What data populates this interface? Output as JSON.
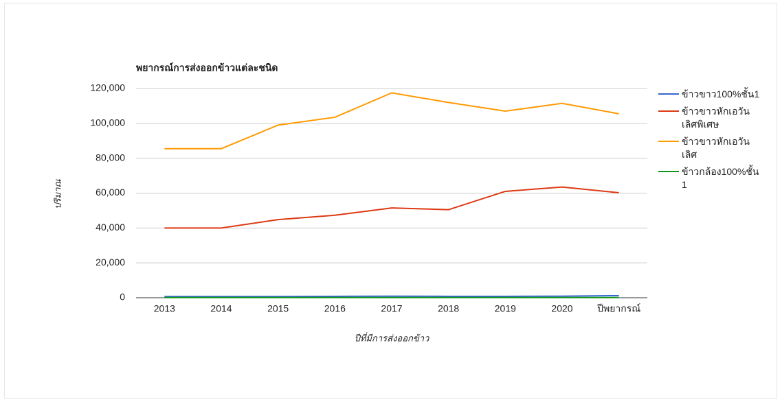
{
  "chart_data": {
    "type": "line",
    "title": "พยากรณ์การส่งออกข้าวแต่ละชนิด",
    "x_label": "ปีที่มีการส่งออกข้าว",
    "y_label": "ปริมาณ",
    "categories": [
      "2013",
      "2014",
      "2015",
      "2016",
      "2017",
      "2018",
      "2019",
      "2020",
      "ปีพยากรณ์"
    ],
    "series": [
      {
        "name": "ข้าวขาว100%ชั้น1",
        "color": "#3366cc",
        "values": [
          700,
          700,
          700,
          800,
          900,
          800,
          800,
          900,
          1200
        ]
      },
      {
        "name": "ข้าวขาวหักเอวันเลิศพิเศษ",
        "color": "#dc3912",
        "values": [
          40000,
          40000,
          44800,
          47300,
          51500,
          50500,
          61000,
          63500,
          60200
        ]
      },
      {
        "name": "ข้าวขาวหักเอวันเลิศ",
        "color": "#ff9900",
        "values": [
          85500,
          85500,
          99000,
          103500,
          117500,
          112000,
          107000,
          111500,
          105500
        ]
      },
      {
        "name": "ข้าวกล้อง100%ชั้น 1",
        "color": "#109618",
        "values": [
          100,
          100,
          100,
          100,
          100,
          100,
          100,
          100,
          100
        ]
      }
    ],
    "ylim": [
      0,
      120000
    ],
    "yticks": [
      0,
      {
        "value": 20000,
        "label": "20,000"
      },
      {
        "value": 40000,
        "label": "40,000"
      },
      {
        "value": 60000,
        "label": "60,000"
      },
      {
        "value": 80000,
        "label": "80,000"
      },
      {
        "value": 100000,
        "label": "100,000"
      },
      {
        "value": 120000,
        "label": "120,000"
      }
    ],
    "grid": true,
    "legend": "right"
  }
}
